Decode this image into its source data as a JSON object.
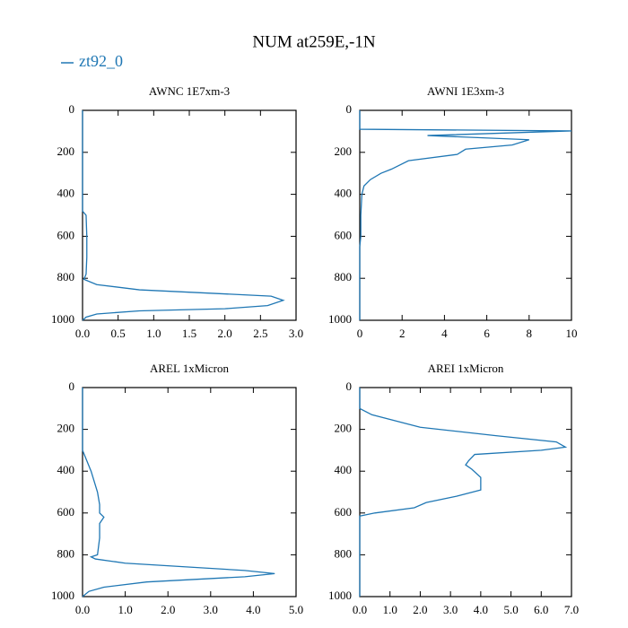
{
  "title": "NUM at259E,-1N",
  "chart_data": [
    {
      "type": "line",
      "title": "AWNC  1E7xm-3",
      "y": [
        0,
        100,
        200,
        300,
        400,
        480,
        500,
        600,
        700,
        780,
        805,
        830,
        855,
        885,
        905,
        930,
        945,
        955,
        970,
        985,
        1000
      ],
      "series": [
        {
          "name": "zt92_0",
          "color": "#1f77b4",
          "values": [
            0,
            0,
            0,
            0,
            0,
            0,
            0.05,
            0.06,
            0.06,
            0.05,
            0.02,
            0.2,
            0.8,
            2.65,
            2.82,
            2.6,
            2.0,
            0.8,
            0.2,
            0.05,
            0
          ]
        }
      ],
      "xlim": [
        0,
        3
      ],
      "xticks": [
        {
          "value": 0,
          "label": "0.0"
        },
        {
          "value": 0.5,
          "label": "0.5"
        },
        {
          "value": 1,
          "label": "1.0"
        },
        {
          "value": 1.5,
          "label": "1.5"
        },
        {
          "value": 2,
          "label": "2.0"
        },
        {
          "value": 2.5,
          "label": "2.5"
        },
        {
          "value": 3,
          "label": "3.0"
        }
      ],
      "ylim": [
        1000,
        0
      ],
      "yticks": [
        0,
        200,
        400,
        600,
        800,
        1000
      ]
    },
    {
      "type": "line",
      "title": "AWNI  1E3xm-3",
      "y": [
        0,
        90,
        98,
        120,
        140,
        165,
        185,
        210,
        240,
        280,
        300,
        330,
        360,
        400,
        500,
        600,
        650,
        700,
        800,
        900,
        1000
      ],
      "series": [
        {
          "name": "zt92_0",
          "color": "#1f77b4",
          "values": [
            0,
            0,
            10,
            3.2,
            8.0,
            7.2,
            5.0,
            4.6,
            2.3,
            1.5,
            1.0,
            0.5,
            0.2,
            0.1,
            0.05,
            0.05,
            0,
            0,
            0,
            0,
            0
          ]
        }
      ],
      "xlim": [
        0,
        10
      ],
      "xticks": [
        0,
        2,
        4,
        6,
        8,
        10
      ],
      "ylim": [
        1000,
        0
      ],
      "yticks": [
        0,
        200,
        400,
        600,
        800,
        1000
      ]
    },
    {
      "type": "line",
      "title": "AREL  1xMicron",
      "y": [
        0,
        100,
        200,
        300,
        400,
        500,
        560,
        600,
        620,
        650,
        720,
        800,
        810,
        820,
        840,
        875,
        890,
        905,
        930,
        955,
        975,
        1000
      ],
      "series": [
        {
          "name": "zt92_0",
          "color": "#1f77b4",
          "values": [
            0,
            0,
            0,
            0,
            0.2,
            0.35,
            0.4,
            0.4,
            0.5,
            0.4,
            0.4,
            0.35,
            0.2,
            0.3,
            1.0,
            3.8,
            4.5,
            3.8,
            1.5,
            0.5,
            0.15,
            0
          ]
        }
      ],
      "xlim": [
        0,
        5
      ],
      "xticks": [
        {
          "value": 0,
          "label": "0.0"
        },
        {
          "value": 1,
          "label": "1.0"
        },
        {
          "value": 2,
          "label": "2.0"
        },
        {
          "value": 3,
          "label": "3.0"
        },
        {
          "value": 4,
          "label": "4.0"
        },
        {
          "value": 5,
          "label": "5.0"
        }
      ],
      "ylim": [
        1000,
        0
      ],
      "yticks": [
        0,
        200,
        400,
        600,
        800,
        1000
      ]
    },
    {
      "type": "line",
      "title": "AREI  1xMicron",
      "y": [
        0,
        100,
        130,
        190,
        230,
        260,
        285,
        300,
        320,
        350,
        370,
        390,
        430,
        490,
        520,
        550,
        575,
        600,
        615,
        700,
        800,
        900,
        1000
      ],
      "series": [
        {
          "name": "zt92_0",
          "color": "#1f77b4",
          "values": [
            0,
            0,
            0.4,
            2.0,
            4.5,
            6.5,
            6.8,
            6.0,
            3.8,
            3.6,
            3.5,
            3.7,
            4.0,
            4.0,
            3.2,
            2.2,
            1.8,
            0.5,
            0,
            0,
            0,
            0,
            0
          ]
        }
      ],
      "xlim": [
        0,
        7
      ],
      "xticks": [
        {
          "value": 0,
          "label": "0.0"
        },
        {
          "value": 1,
          "label": "1.0"
        },
        {
          "value": 2,
          "label": "2.0"
        },
        {
          "value": 3,
          "label": "3.0"
        },
        {
          "value": 4,
          "label": "4.0"
        },
        {
          "value": 5,
          "label": "5.0"
        },
        {
          "value": 6,
          "label": "6.0"
        },
        {
          "value": 7,
          "label": "7.0"
        }
      ],
      "ylim": [
        1000,
        0
      ],
      "yticks": [
        0,
        200,
        400,
        600,
        800,
        1000
      ]
    }
  ]
}
